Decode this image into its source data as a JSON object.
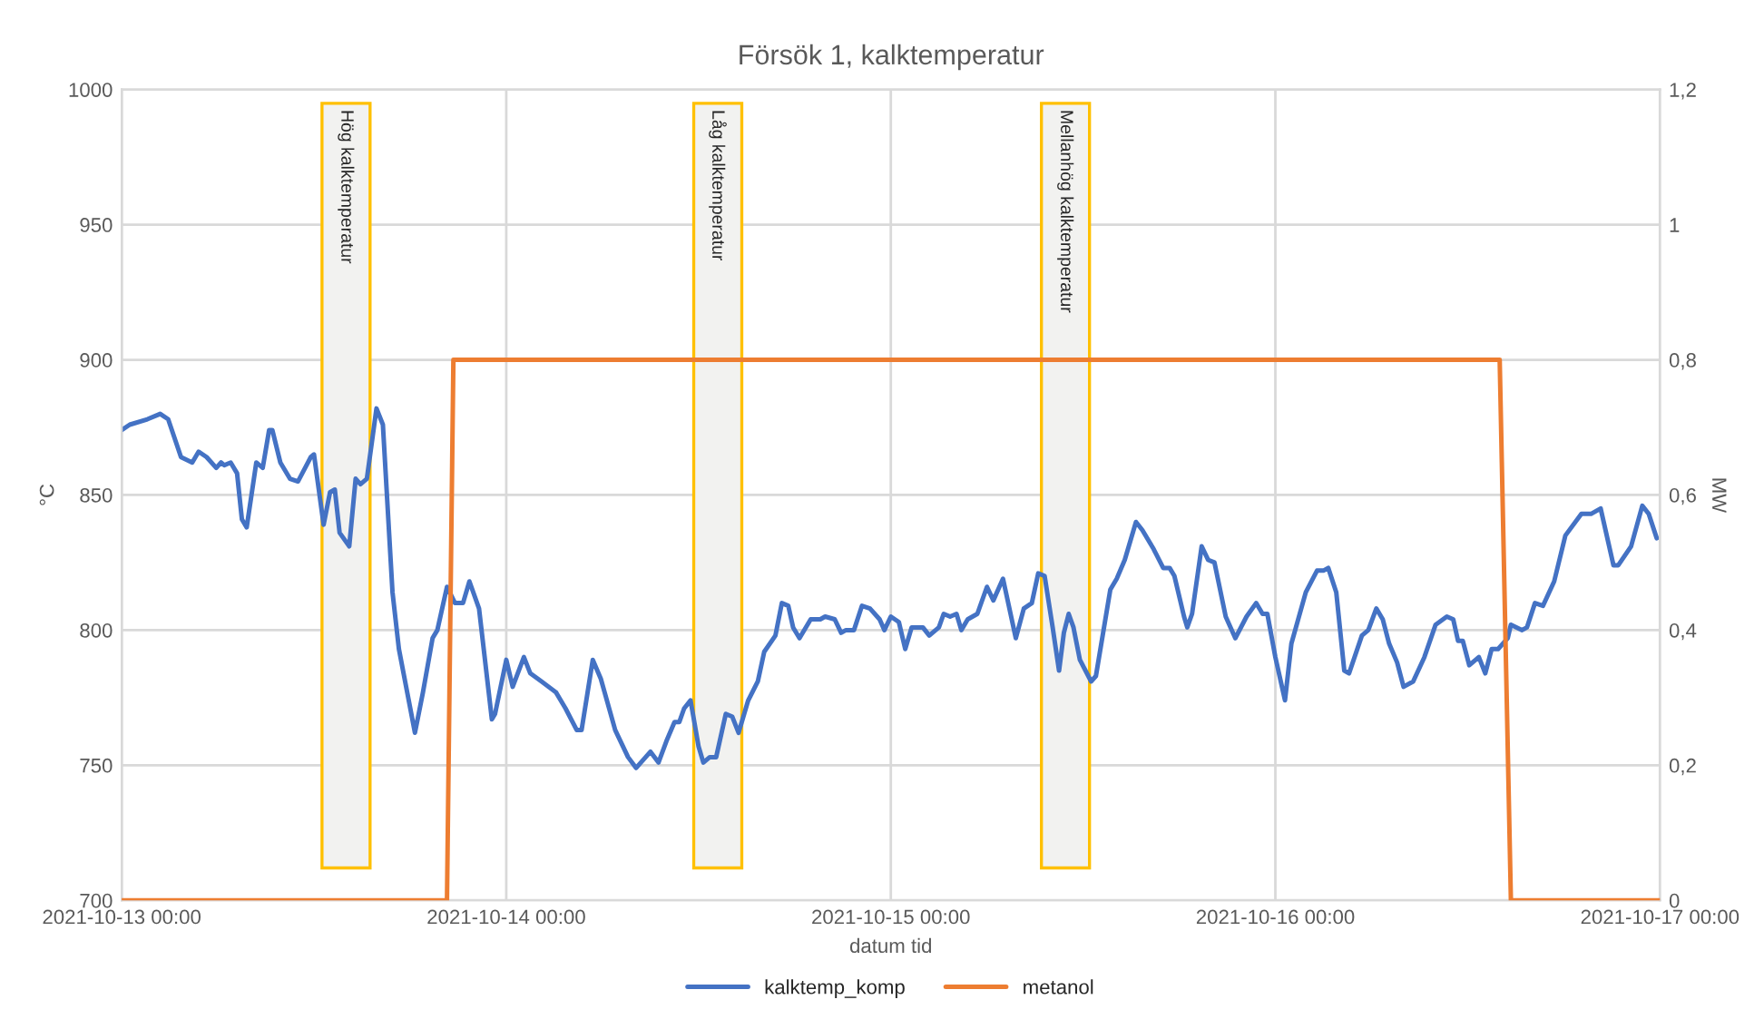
{
  "chart_data": {
    "type": "line",
    "title": "Försök 1, kalktemperatur",
    "xlabel": "datum tid",
    "ylabel": "°C",
    "y2label": "MW",
    "xlim": [
      "2021-10-13T00:00",
      "2021-10-17T00:00"
    ],
    "xticks": [
      {
        "value": "2021-10-13T00:00",
        "label": "2021-10-13 00:00"
      },
      {
        "value": "2021-10-14T00:00",
        "label": "2021-10-14 00:00"
      },
      {
        "value": "2021-10-15T00:00",
        "label": "2021-10-15 00:00"
      },
      {
        "value": "2021-10-16T00:00",
        "label": "2021-10-16 00:00"
      },
      {
        "value": "2021-10-17T00:00",
        "label": "2021-10-17 00:00"
      }
    ],
    "ylim": [
      700,
      1000
    ],
    "yticks": [
      700,
      750,
      800,
      850,
      900,
      950,
      1000
    ],
    "y2lim": [
      0,
      1.2
    ],
    "y2ticks": [
      {
        "value": 0,
        "label": "0"
      },
      {
        "value": 0.2,
        "label": "0,2"
      },
      {
        "value": 0.4,
        "label": "0,4"
      },
      {
        "value": 0.6,
        "label": "0,6"
      },
      {
        "value": 0.8,
        "label": "0,8"
      },
      {
        "value": 1,
        "label": "1"
      },
      {
        "value": 1.2,
        "label": "1,2"
      }
    ],
    "grid": true,
    "legend": "bottom",
    "marker": "none",
    "line_style": "solid",
    "bands": [
      {
        "axis": "x",
        "from": "2021-10-13T12:30",
        "to": "2021-10-13T15:30",
        "label": "Hög kalktemperatur",
        "color": "#ffc000"
      },
      {
        "axis": "x",
        "from": "2021-10-14T11:42",
        "to": "2021-10-14T14:42",
        "label": "Låg kalktemperatur",
        "color": "#ffc000"
      },
      {
        "axis": "x",
        "from": "2021-10-15T09:24",
        "to": "2021-10-15T12:24",
        "label": "Mellanhög kalktemperatur",
        "color": "#ffc000"
      }
    ],
    "series": [
      {
        "name": "kalktemp_komp",
        "color": "#4472c4",
        "x": [
          "2021-10-13T00:00",
          "2021-10-13T00:30",
          "2021-10-13T01:36",
          "2021-10-13T02:24",
          "2021-10-13T02:54",
          "2021-10-13T03:42",
          "2021-10-13T04:24",
          "2021-10-13T04:48",
          "2021-10-13T05:18",
          "2021-10-13T05:54",
          "2021-10-13T06:12",
          "2021-10-13T06:24",
          "2021-10-13T06:48",
          "2021-10-13T07:12",
          "2021-10-13T07:30",
          "2021-10-13T07:48",
          "2021-10-13T08:24",
          "2021-10-13T08:48",
          "2021-10-13T09:12",
          "2021-10-13T09:24",
          "2021-10-13T09:54",
          "2021-10-13T10:30",
          "2021-10-13T11:00",
          "2021-10-13T11:48",
          "2021-10-13T12:00",
          "2021-10-13T12:36",
          "2021-10-13T13:00",
          "2021-10-13T13:18",
          "2021-10-13T13:36",
          "2021-10-13T14:12",
          "2021-10-13T14:36",
          "2021-10-13T14:54",
          "2021-10-13T15:18",
          "2021-10-13T15:54",
          "2021-10-13T16:18",
          "2021-10-13T16:54",
          "2021-10-13T17:18",
          "2021-10-13T18:18",
          "2021-10-13T18:48",
          "2021-10-13T19:24",
          "2021-10-13T19:42",
          "2021-10-13T20:18",
          "2021-10-13T20:48",
          "2021-10-13T21:18",
          "2021-10-13T21:42",
          "2021-10-13T22:18",
          "2021-10-13T23:06",
          "2021-10-13T23:18",
          "2021-10-14T00:00",
          "2021-10-14T00:24",
          "2021-10-14T01:06",
          "2021-10-14T01:30",
          "2021-10-14T02:12",
          "2021-10-14T03:06",
          "2021-10-14T03:42",
          "2021-10-14T04:24",
          "2021-10-14T04:42",
          "2021-10-14T05:24",
          "2021-10-14T05:54",
          "2021-10-14T06:48",
          "2021-10-14T07:36",
          "2021-10-14T08:06",
          "2021-10-14T09:00",
          "2021-10-14T09:30",
          "2021-10-14T10:00",
          "2021-10-14T10:30",
          "2021-10-14T10:48",
          "2021-10-14T11:06",
          "2021-10-14T11:30",
          "2021-10-14T12:00",
          "2021-10-14T12:18",
          "2021-10-14T12:42",
          "2021-10-14T13:06",
          "2021-10-14T13:42",
          "2021-10-14T14:06",
          "2021-10-14T14:30",
          "2021-10-14T15:06",
          "2021-10-14T15:42",
          "2021-10-14T16:06",
          "2021-10-14T16:48",
          "2021-10-14T17:12",
          "2021-10-14T17:36",
          "2021-10-14T17:54",
          "2021-10-14T18:18",
          "2021-10-14T19:00",
          "2021-10-14T19:36",
          "2021-10-14T19:54",
          "2021-10-14T20:30",
          "2021-10-14T20:54",
          "2021-10-14T21:12",
          "2021-10-14T21:42",
          "2021-10-14T22:12",
          "2021-10-14T22:42",
          "2021-10-14T23:18",
          "2021-10-14T23:36",
          "2021-10-15T00:00",
          "2021-10-15T00:30",
          "2021-10-15T00:54",
          "2021-10-15T01:18",
          "2021-10-15T01:48",
          "2021-10-15T02:00",
          "2021-10-15T02:24",
          "2021-10-15T03:00",
          "2021-10-15T03:18",
          "2021-10-15T03:42",
          "2021-10-15T04:06",
          "2021-10-15T04:24",
          "2021-10-15T04:48",
          "2021-10-15T05:24",
          "2021-10-15T06:00",
          "2021-10-15T06:24",
          "2021-10-15T07:00",
          "2021-10-15T07:48",
          "2021-10-15T08:18",
          "2021-10-15T08:48",
          "2021-10-15T09:12",
          "2021-10-15T09:36",
          "2021-10-15T10:06",
          "2021-10-15T10:30",
          "2021-10-15T10:48",
          "2021-10-15T11:06",
          "2021-10-15T11:24",
          "2021-10-15T11:48",
          "2021-10-15T12:30",
          "2021-10-15T12:48",
          "2021-10-15T13:42",
          "2021-10-15T14:06",
          "2021-10-15T14:36",
          "2021-10-15T15:18",
          "2021-10-15T15:42",
          "2021-10-15T16:24",
          "2021-10-15T17:00",
          "2021-10-15T17:24",
          "2021-10-15T17:42",
          "2021-10-15T18:18",
          "2021-10-15T18:30",
          "2021-10-15T18:48",
          "2021-10-15T19:24",
          "2021-10-15T19:48",
          "2021-10-15T20:12",
          "2021-10-15T20:54",
          "2021-10-15T21:30",
          "2021-10-15T22:12",
          "2021-10-15T22:48",
          "2021-10-15T23:12",
          "2021-10-15T23:30",
          "2021-10-16T00:00",
          "2021-10-16T00:36",
          "2021-10-16T01:00",
          "2021-10-16T01:54",
          "2021-10-16T02:36",
          "2021-10-16T03:00",
          "2021-10-16T03:18",
          "2021-10-16T03:48",
          "2021-10-16T04:18",
          "2021-10-16T04:36",
          "2021-10-16T05:24",
          "2021-10-16T05:48",
          "2021-10-16T06:18",
          "2021-10-16T06:42",
          "2021-10-16T07:06",
          "2021-10-16T07:36",
          "2021-10-16T08:00",
          "2021-10-16T08:36",
          "2021-10-16T09:18",
          "2021-10-16T10:00",
          "2021-10-16T10:42",
          "2021-10-16T11:06",
          "2021-10-16T11:24",
          "2021-10-16T11:42",
          "2021-10-16T12:06",
          "2021-10-16T12:42",
          "2021-10-16T13:06",
          "2021-10-16T13:30",
          "2021-10-16T13:54",
          "2021-10-16T14:30",
          "2021-10-16T14:42",
          "2021-10-16T15:24",
          "2021-10-16T15:42",
          "2021-10-16T16:12",
          "2021-10-16T16:42",
          "2021-10-16T17:24",
          "2021-10-16T18:06",
          "2021-10-16T19:06",
          "2021-10-16T19:42",
          "2021-10-16T20:18",
          "2021-10-16T21:06",
          "2021-10-16T21:24",
          "2021-10-16T22:12",
          "2021-10-16T22:54",
          "2021-10-16T23:18",
          "2021-10-16T23:48"
        ],
        "values": [
          874,
          876,
          878,
          880,
          878,
          864,
          862,
          866,
          864,
          860,
          862,
          861,
          862,
          858,
          841,
          838,
          862,
          860,
          874,
          874,
          862,
          856,
          855,
          864,
          865,
          839,
          851,
          852,
          836,
          831,
          856,
          854,
          856,
          882,
          876,
          814,
          793,
          762,
          777,
          797,
          800,
          816,
          810,
          810,
          818,
          808,
          767,
          769,
          789,
          779,
          790,
          784,
          781,
          777,
          771,
          763,
          763,
          789,
          782,
          763,
          753,
          749,
          755,
          751,
          759,
          766,
          766,
          771,
          774,
          757,
          751,
          753,
          753,
          769,
          768,
          762,
          774,
          781,
          792,
          798,
          810,
          809,
          801,
          797,
          804,
          804,
          805,
          804,
          799,
          800,
          800,
          809,
          808,
          804,
          800,
          805,
          803,
          793,
          801,
          801,
          801,
          798,
          801,
          806,
          805,
          806,
          800,
          804,
          806,
          816,
          811,
          819,
          797,
          808,
          810,
          821,
          820,
          801,
          785,
          799,
          806,
          801,
          789,
          781,
          783,
          815,
          819,
          826,
          840,
          837,
          830,
          823,
          823,
          820,
          805,
          801,
          806,
          831,
          826,
          825,
          805,
          797,
          805,
          810,
          806,
          806,
          790,
          774,
          795,
          814,
          822,
          822,
          823,
          814,
          785,
          784,
          798,
          800,
          808,
          804,
          795,
          788,
          779,
          781,
          790,
          802,
          805,
          804,
          796,
          796,
          787,
          790,
          784,
          793,
          793,
          797,
          802,
          800,
          801,
          810,
          809,
          818,
          835,
          843,
          843,
          845,
          824,
          824,
          831,
          846,
          843,
          834
        ]
      },
      {
        "name": "metanol",
        "color": "#ed7d31",
        "axis": "y2",
        "x": [
          "2021-10-13T00:00",
          "2021-10-13T20:18",
          "2021-10-13T20:42",
          "2021-10-16T14:00",
          "2021-10-16T14:42",
          "2021-10-17T00:00"
        ],
        "values": [
          0,
          0,
          0.8,
          0.8,
          0,
          0
        ]
      }
    ]
  }
}
